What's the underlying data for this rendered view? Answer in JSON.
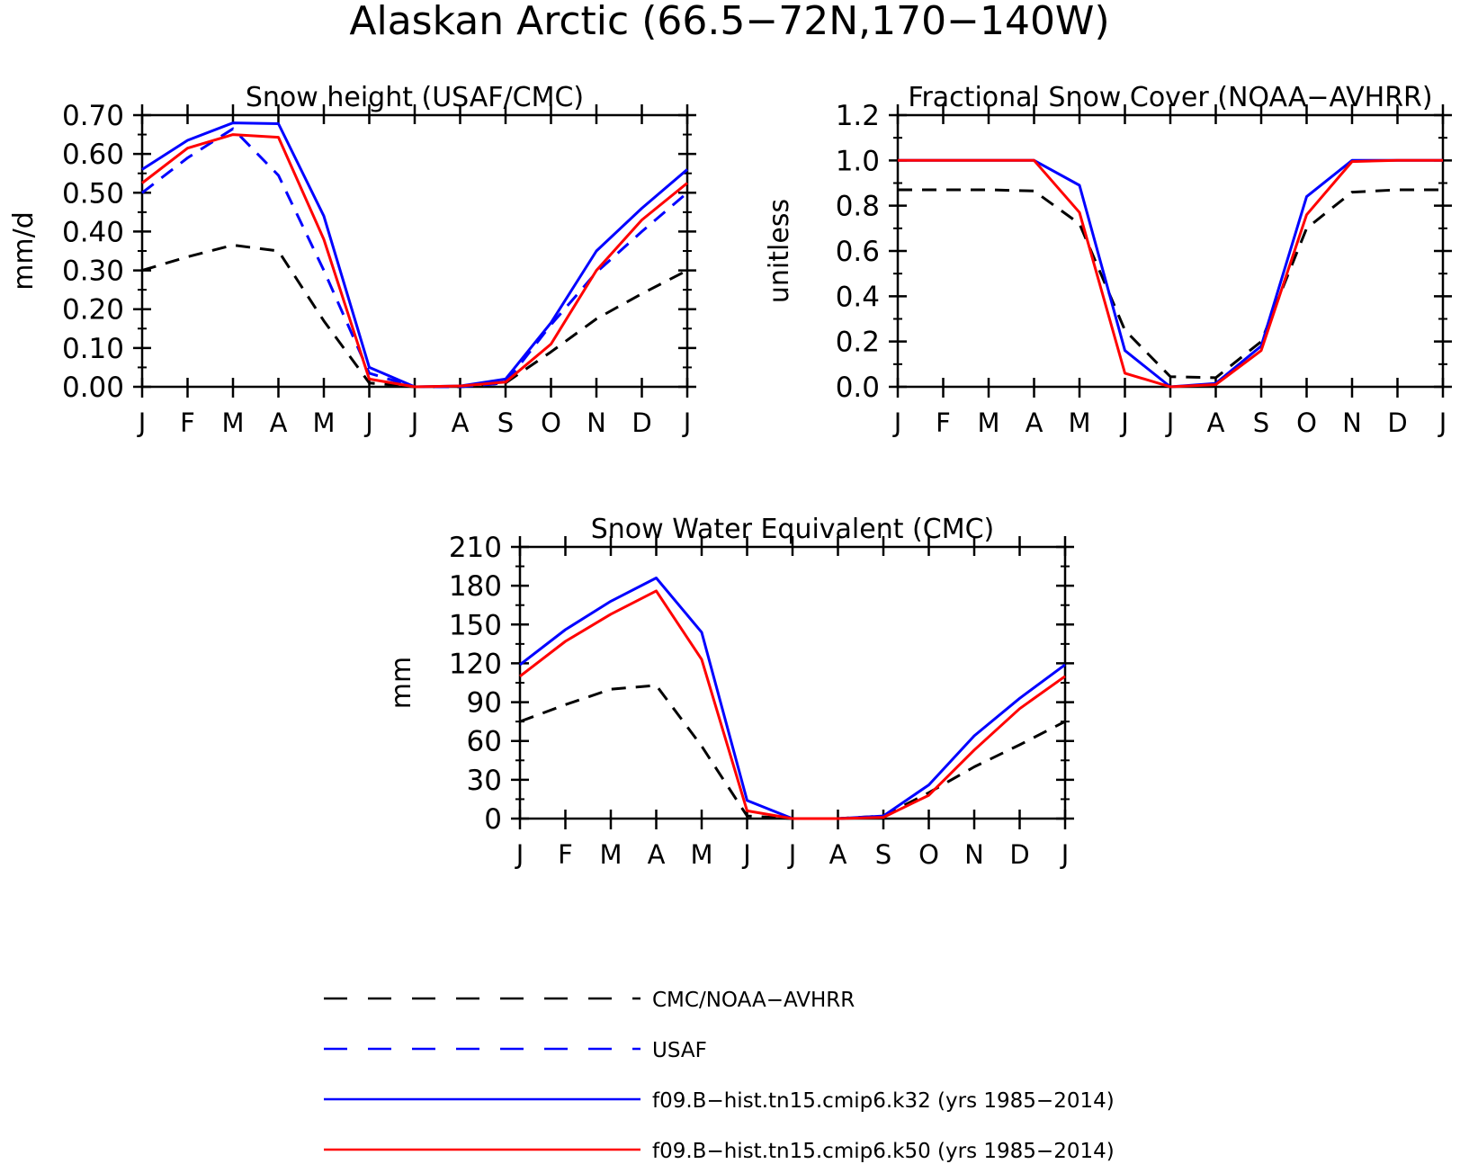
{
  "figure_title": "Alaskan Arctic (66.5−72N,170−140W)",
  "colors": {
    "obs": "#000000",
    "usaf": "#0000ff",
    "k32": "#0000ff",
    "k50": "#ff0000"
  },
  "legend": [
    {
      "key": "obs",
      "label": "CMC/NOAA−AVHRR",
      "color": "#000000",
      "style": "dashed"
    },
    {
      "key": "usaf",
      "label": "USAF",
      "color": "#0000ff",
      "style": "dashed"
    },
    {
      "key": "k32",
      "label": "f09.B−hist.tn15.cmip6.k32 (yrs 1985−2014)",
      "color": "#0000ff",
      "style": "solid"
    },
    {
      "key": "k50",
      "label": "f09.B−hist.tn15.cmip6.k50 (yrs 1985−2014)",
      "color": "#ff0000",
      "style": "solid"
    }
  ],
  "chart_data": [
    {
      "type": "line",
      "title": "Snow height (USAF/CMC)",
      "ylabel": "mm/d",
      "xlabel": "",
      "categories": [
        "J",
        "F",
        "M",
        "A",
        "M",
        "J",
        "J",
        "A",
        "S",
        "O",
        "N",
        "D",
        "J"
      ],
      "ylim": [
        0,
        0.7
      ],
      "yticks": [
        "0.00",
        "0.10",
        "0.20",
        "0.30",
        "0.40",
        "0.50",
        "0.60",
        "0.70"
      ],
      "grid": false,
      "series": [
        {
          "key": "obs",
          "values": [
            0.3,
            0.335,
            0.365,
            0.35,
            0.17,
            0.01,
            0.0,
            0.0,
            0.01,
            0.09,
            0.175,
            0.24,
            0.3
          ]
        },
        {
          "key": "usaf",
          "values": [
            0.5,
            0.59,
            0.665,
            0.545,
            0.3,
            0.035,
            0.0,
            0.0,
            0.01,
            0.16,
            0.295,
            0.4,
            0.5
          ]
        },
        {
          "key": "k32",
          "values": [
            0.56,
            0.635,
            0.68,
            0.678,
            0.44,
            0.05,
            0.0,
            0.002,
            0.02,
            0.165,
            0.35,
            0.46,
            0.56
          ]
        },
        {
          "key": "k50",
          "values": [
            0.525,
            0.615,
            0.65,
            0.643,
            0.38,
            0.02,
            0.0,
            0.002,
            0.012,
            0.11,
            0.3,
            0.43,
            0.525
          ]
        }
      ]
    },
    {
      "type": "line",
      "title": "Fractional Snow Cover (NOAA−AVHRR)",
      "ylabel": "unitless",
      "xlabel": "",
      "categories": [
        "J",
        "F",
        "M",
        "A",
        "M",
        "J",
        "J",
        "A",
        "S",
        "O",
        "N",
        "D",
        "J"
      ],
      "ylim": [
        0,
        1.2
      ],
      "yticks": [
        "0.0",
        "0.2",
        "0.4",
        "0.6",
        "0.8",
        "1.0",
        "1.2"
      ],
      "grid": false,
      "series": [
        {
          "key": "obs",
          "values": [
            0.87,
            0.87,
            0.87,
            0.865,
            0.72,
            0.25,
            0.045,
            0.04,
            0.2,
            0.7,
            0.86,
            0.87,
            0.87
          ]
        },
        {
          "key": "k32",
          "values": [
            1.0,
            1.0,
            1.0,
            1.0,
            0.89,
            0.16,
            0.0,
            0.015,
            0.18,
            0.84,
            1.0,
            1.0,
            1.0
          ]
        },
        {
          "key": "k50",
          "values": [
            1.0,
            1.0,
            1.0,
            1.0,
            0.77,
            0.06,
            0.0,
            0.01,
            0.16,
            0.76,
            0.995,
            1.0,
            1.0
          ]
        }
      ]
    },
    {
      "type": "line",
      "title": "Snow Water Equivalent (CMC)",
      "ylabel": "mm",
      "xlabel": "",
      "categories": [
        "J",
        "F",
        "M",
        "A",
        "M",
        "J",
        "J",
        "A",
        "S",
        "O",
        "N",
        "D",
        "J"
      ],
      "ylim": [
        0,
        210
      ],
      "yticks": [
        "0",
        "30",
        "60",
        "90",
        "120",
        "150",
        "180",
        "210"
      ],
      "grid": false,
      "series": [
        {
          "key": "obs",
          "values": [
            75,
            88,
            100,
            103,
            56,
            2,
            0,
            0,
            2,
            20,
            40,
            57,
            75
          ]
        },
        {
          "key": "k32",
          "values": [
            119,
            146,
            168,
            186,
            144,
            14,
            0,
            0,
            2,
            26,
            64,
            93,
            119
          ]
        },
        {
          "key": "k50",
          "values": [
            110,
            137,
            158,
            176,
            123,
            6,
            0,
            0,
            1,
            18,
            53,
            85,
            110
          ]
        }
      ]
    }
  ]
}
